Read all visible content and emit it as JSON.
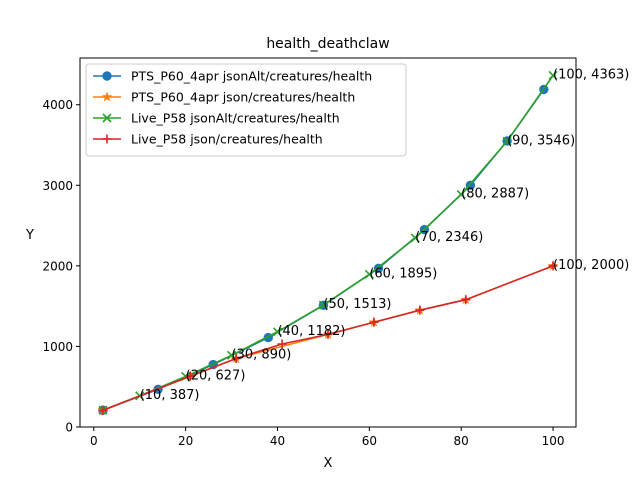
{
  "chart_data": {
    "type": "line",
    "title": "health_deathclaw",
    "xlabel": "X",
    "ylabel": "Y",
    "xlim": [
      -3,
      105
    ],
    "ylim": [
      0,
      4580
    ],
    "xticks": [
      0,
      20,
      40,
      60,
      80,
      100
    ],
    "yticks": [
      0,
      1000,
      2000,
      3000,
      4000
    ],
    "grid": false,
    "legend_position": "top-left",
    "series": [
      {
        "name": "PTS_P60_4apr jsonAlt/creatures/health",
        "color": "#1f77b4",
        "marker": "circle",
        "x": [
          2,
          14,
          26,
          38,
          50,
          62,
          72,
          82,
          90,
          98
        ],
        "y": [
          208,
          468,
          775,
          1110,
          1510,
          1970,
          2450,
          3000,
          3550,
          4190
        ]
      },
      {
        "name": "PTS_P60_4apr json/creatures/health",
        "color": "#ff7f0e",
        "marker": "star",
        "x": [
          2,
          21,
          31,
          51,
          61,
          71,
          81,
          100
        ],
        "y": [
          208,
          630,
          850,
          1150,
          1300,
          1450,
          1580,
          2000
        ]
      },
      {
        "name": "Live_P58 jsonAlt/creatures/health",
        "color": "#2ca02c",
        "marker": "x",
        "x": [
          2,
          10,
          20,
          30,
          40,
          50,
          60,
          70,
          80,
          90,
          100
        ],
        "y": [
          208,
          387,
          627,
          890,
          1182,
          1513,
          1895,
          2346,
          2887,
          3546,
          4363
        ]
      },
      {
        "name": "Live_P58 json/creatures/health",
        "color": "#d62728",
        "marker": "plus",
        "x": [
          2,
          21,
          31,
          41,
          51,
          61,
          71,
          81,
          100
        ],
        "y": [
          208,
          630,
          850,
          1030,
          1150,
          1300,
          1450,
          1580,
          2000
        ]
      }
    ],
    "annotations": [
      {
        "x": 10,
        "y": 387,
        "text": "(10, 387)"
      },
      {
        "x": 20,
        "y": 627,
        "text": "(20, 627)"
      },
      {
        "x": 30,
        "y": 890,
        "text": "(30, 890)"
      },
      {
        "x": 40,
        "y": 1182,
        "text": "(40, 1182)"
      },
      {
        "x": 50,
        "y": 1513,
        "text": "(50, 1513)"
      },
      {
        "x": 60,
        "y": 1895,
        "text": "(60, 1895)"
      },
      {
        "x": 70,
        "y": 2346,
        "text": "(70, 2346)"
      },
      {
        "x": 80,
        "y": 2887,
        "text": "(80, 2887)"
      },
      {
        "x": 90,
        "y": 3546,
        "text": "(90, 3546)"
      },
      {
        "x": 100,
        "y": 4363,
        "text": "(100, 4363)"
      },
      {
        "x": 100,
        "y": 2000,
        "text": "(100, 2000)"
      }
    ]
  }
}
